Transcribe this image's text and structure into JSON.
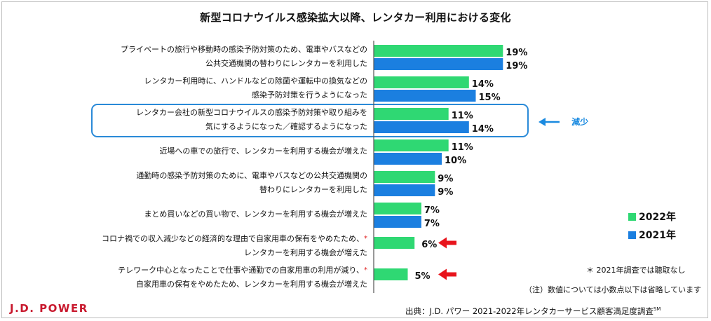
{
  "colors": {
    "green": "#2fd873",
    "blue": "#1b7fe0",
    "highlight": "#2a8ad8",
    "red_arrow": "#e8141c",
    "reduce_text": "#1a8ae0",
    "brand": "#c8182d"
  },
  "logo": "J.D. POWER",
  "source": "出典：J.D. パワー 2021-2022年レンタカーサービス顧客満足度調査",
  "source_mark": "SM",
  "annotation_reduce": "減少",
  "notes": {
    "asterisk": "＊ 2021年調査では聴取なし",
    "rounding": "（注）数値については小数点以下は省略しています"
  },
  "chart_data": {
    "type": "bar",
    "orientation": "horizontal",
    "title": "新型コロナウイルス感染拡大以降、レンタカー利用における変化",
    "series": [
      {
        "name": "2022年",
        "color": "#2fd873",
        "values": [
          19,
          14,
          11,
          11,
          9,
          7,
          6,
          5
        ]
      },
      {
        "name": "2021年",
        "color": "#1b7fe0",
        "values": [
          19,
          15,
          14,
          10,
          9,
          7,
          null,
          null
        ]
      }
    ],
    "categories": [
      {
        "line1": "プライベートの旅行や移動時の感染予防対策のため、電車やバスなどの",
        "line2": "公共交通機関の替わりにレンタカーを利用した",
        "mark": ""
      },
      {
        "line1": "レンタカー利用時に、ハンドルなどの除菌や運転中の換気などの",
        "line2": "感染予防対策を行うようになった",
        "mark": ""
      },
      {
        "line1": "レンタカー会社の新型コロナウイルスの感染予防対策や取り組みを",
        "line2": "気にするようになった／確認するようになった",
        "mark": ""
      },
      {
        "line1": "近場への車での旅行で、レンタカーを利用する機会が増えた",
        "line2": "",
        "mark": ""
      },
      {
        "line1": "通勤時の感染予防対策のために、電車やバスなどの公共交通機関の",
        "line2": "替わりにレンタカーを利用した",
        "mark": ""
      },
      {
        "line1": "まとめ買いなどの買い物で、レンタカーを利用する機会が増えた",
        "line2": "",
        "mark": ""
      },
      {
        "line1": "コロナ禍での収入減少などの経済的な理由で自家用車の保有をやめたため、",
        "line2": "レンタカーを利用する機会が増えた",
        "mark": "*"
      },
      {
        "line1": "テレワーク中心となったことで仕事や通勤での自家用車の利用が減り、",
        "line2": "自家用車の保有をやめたため、レンタカーを利用する機会が増えた",
        "mark": "*"
      }
    ],
    "value_suffix": "%",
    "legend_position": "right"
  }
}
